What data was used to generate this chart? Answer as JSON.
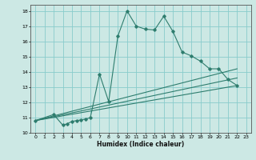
{
  "xlabel": "Humidex (Indice chaleur)",
  "background_color": "#cce8e4",
  "grid_color": "#88cccc",
  "line_color": "#2e7d6e",
  "xlim": [
    -0.5,
    23.5
  ],
  "ylim": [
    10,
    18.4
  ],
  "xticks": [
    0,
    1,
    2,
    3,
    4,
    5,
    6,
    7,
    8,
    9,
    10,
    11,
    12,
    13,
    14,
    15,
    16,
    17,
    18,
    19,
    20,
    21,
    22,
    23
  ],
  "yticks": [
    10,
    11,
    12,
    13,
    14,
    15,
    16,
    17,
    18
  ],
  "line1_x": [
    0,
    2,
    3,
    3.5,
    4,
    4.5,
    5,
    5.5,
    6,
    7,
    8,
    9,
    10,
    11,
    12,
    13,
    14,
    15,
    16,
    17,
    18,
    19,
    20,
    21,
    22
  ],
  "line1_y": [
    10.8,
    11.2,
    10.5,
    10.6,
    10.75,
    10.8,
    10.85,
    10.9,
    11.0,
    13.85,
    12.05,
    16.35,
    18.0,
    17.0,
    16.8,
    16.75,
    17.65,
    16.65,
    15.3,
    15.05,
    14.7,
    14.2,
    14.2,
    13.5,
    13.1
  ],
  "line2_x": [
    0,
    22
  ],
  "line2_y": [
    10.8,
    14.2
  ],
  "line3_x": [
    0,
    22
  ],
  "line3_y": [
    10.8,
    13.1
  ],
  "line4_x": [
    0,
    22
  ],
  "line4_y": [
    10.8,
    13.6
  ]
}
